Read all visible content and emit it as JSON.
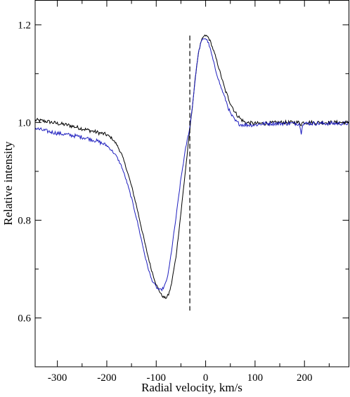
{
  "chart_data": {
    "type": "line",
    "title": "",
    "xlabel": "Radial velocity, km/s",
    "ylabel": "Relative intensity",
    "xlim": [
      -345,
      290
    ],
    "ylim": [
      0.5,
      1.25
    ],
    "xticks": [
      -300,
      -200,
      -100,
      0,
      100,
      200
    ],
    "xtick_labels": [
      "-300",
      "-200",
      "-100",
      "0",
      "100",
      "200"
    ],
    "yticks": [
      0.6,
      0.8,
      1.0,
      1.2
    ],
    "ytick_labels": [
      "0.6",
      "0.8",
      "1.0",
      "1.2"
    ],
    "grid": false,
    "legend": "none",
    "reference_line": {
      "x": -32,
      "y_range": [
        0.615,
        1.178
      ],
      "style": "dashed",
      "color": "#000000"
    },
    "series": [
      {
        "color": "#000000",
        "x": [
          -345,
          -320,
          -300,
          -280,
          -260,
          -240,
          -220,
          -200,
          -190,
          -180,
          -170,
          -160,
          -150,
          -140,
          -130,
          -120,
          -110,
          -100,
          -90,
          -85,
          -80,
          -75,
          -70,
          -60,
          -50,
          -40,
          -32,
          -25,
          -20,
          -15,
          -10,
          -5,
          0,
          5,
          10,
          20,
          30,
          40,
          50,
          60,
          70,
          80,
          100,
          120,
          150,
          190,
          193,
          196,
          220,
          250,
          290
        ],
        "y": [
          1.005,
          1.002,
          0.998,
          0.995,
          0.99,
          0.985,
          0.98,
          0.975,
          0.968,
          0.955,
          0.935,
          0.905,
          0.87,
          0.83,
          0.785,
          0.74,
          0.7,
          0.668,
          0.648,
          0.642,
          0.641,
          0.648,
          0.665,
          0.725,
          0.815,
          0.91,
          0.985,
          1.05,
          1.1,
          1.14,
          1.162,
          1.175,
          1.178,
          1.175,
          1.165,
          1.135,
          1.1,
          1.065,
          1.04,
          1.02,
          1.008,
          1.0,
          0.998,
          0.998,
          1.0,
          1.0,
          0.996,
          1.0,
          1.0,
          1.0,
          1.0
        ]
      },
      {
        "color": "#1f1fbf",
        "x": [
          -345,
          -320,
          -300,
          -280,
          -260,
          -240,
          -220,
          -200,
          -190,
          -180,
          -170,
          -160,
          -150,
          -140,
          -130,
          -120,
          -110,
          -100,
          -95,
          -90,
          -85,
          -80,
          -75,
          -70,
          -60,
          -50,
          -40,
          -32,
          -25,
          -20,
          -15,
          -10,
          -5,
          0,
          5,
          10,
          20,
          30,
          40,
          50,
          60,
          70,
          80,
          100,
          120,
          150,
          190,
          193,
          196,
          220,
          250,
          290
        ],
        "y": [
          0.988,
          0.982,
          0.978,
          0.975,
          0.972,
          0.968,
          0.962,
          0.953,
          0.943,
          0.93,
          0.91,
          0.88,
          0.845,
          0.805,
          0.76,
          0.715,
          0.68,
          0.663,
          0.658,
          0.657,
          0.662,
          0.673,
          0.695,
          0.73,
          0.805,
          0.885,
          0.95,
          0.99,
          1.05,
          1.1,
          1.14,
          1.162,
          1.172,
          1.172,
          1.165,
          1.148,
          1.108,
          1.075,
          1.048,
          1.018,
          1.003,
          0.996,
          0.995,
          0.995,
          0.998,
          0.998,
          0.998,
          0.976,
          0.998,
          0.998,
          0.998,
          0.998
        ]
      }
    ]
  }
}
